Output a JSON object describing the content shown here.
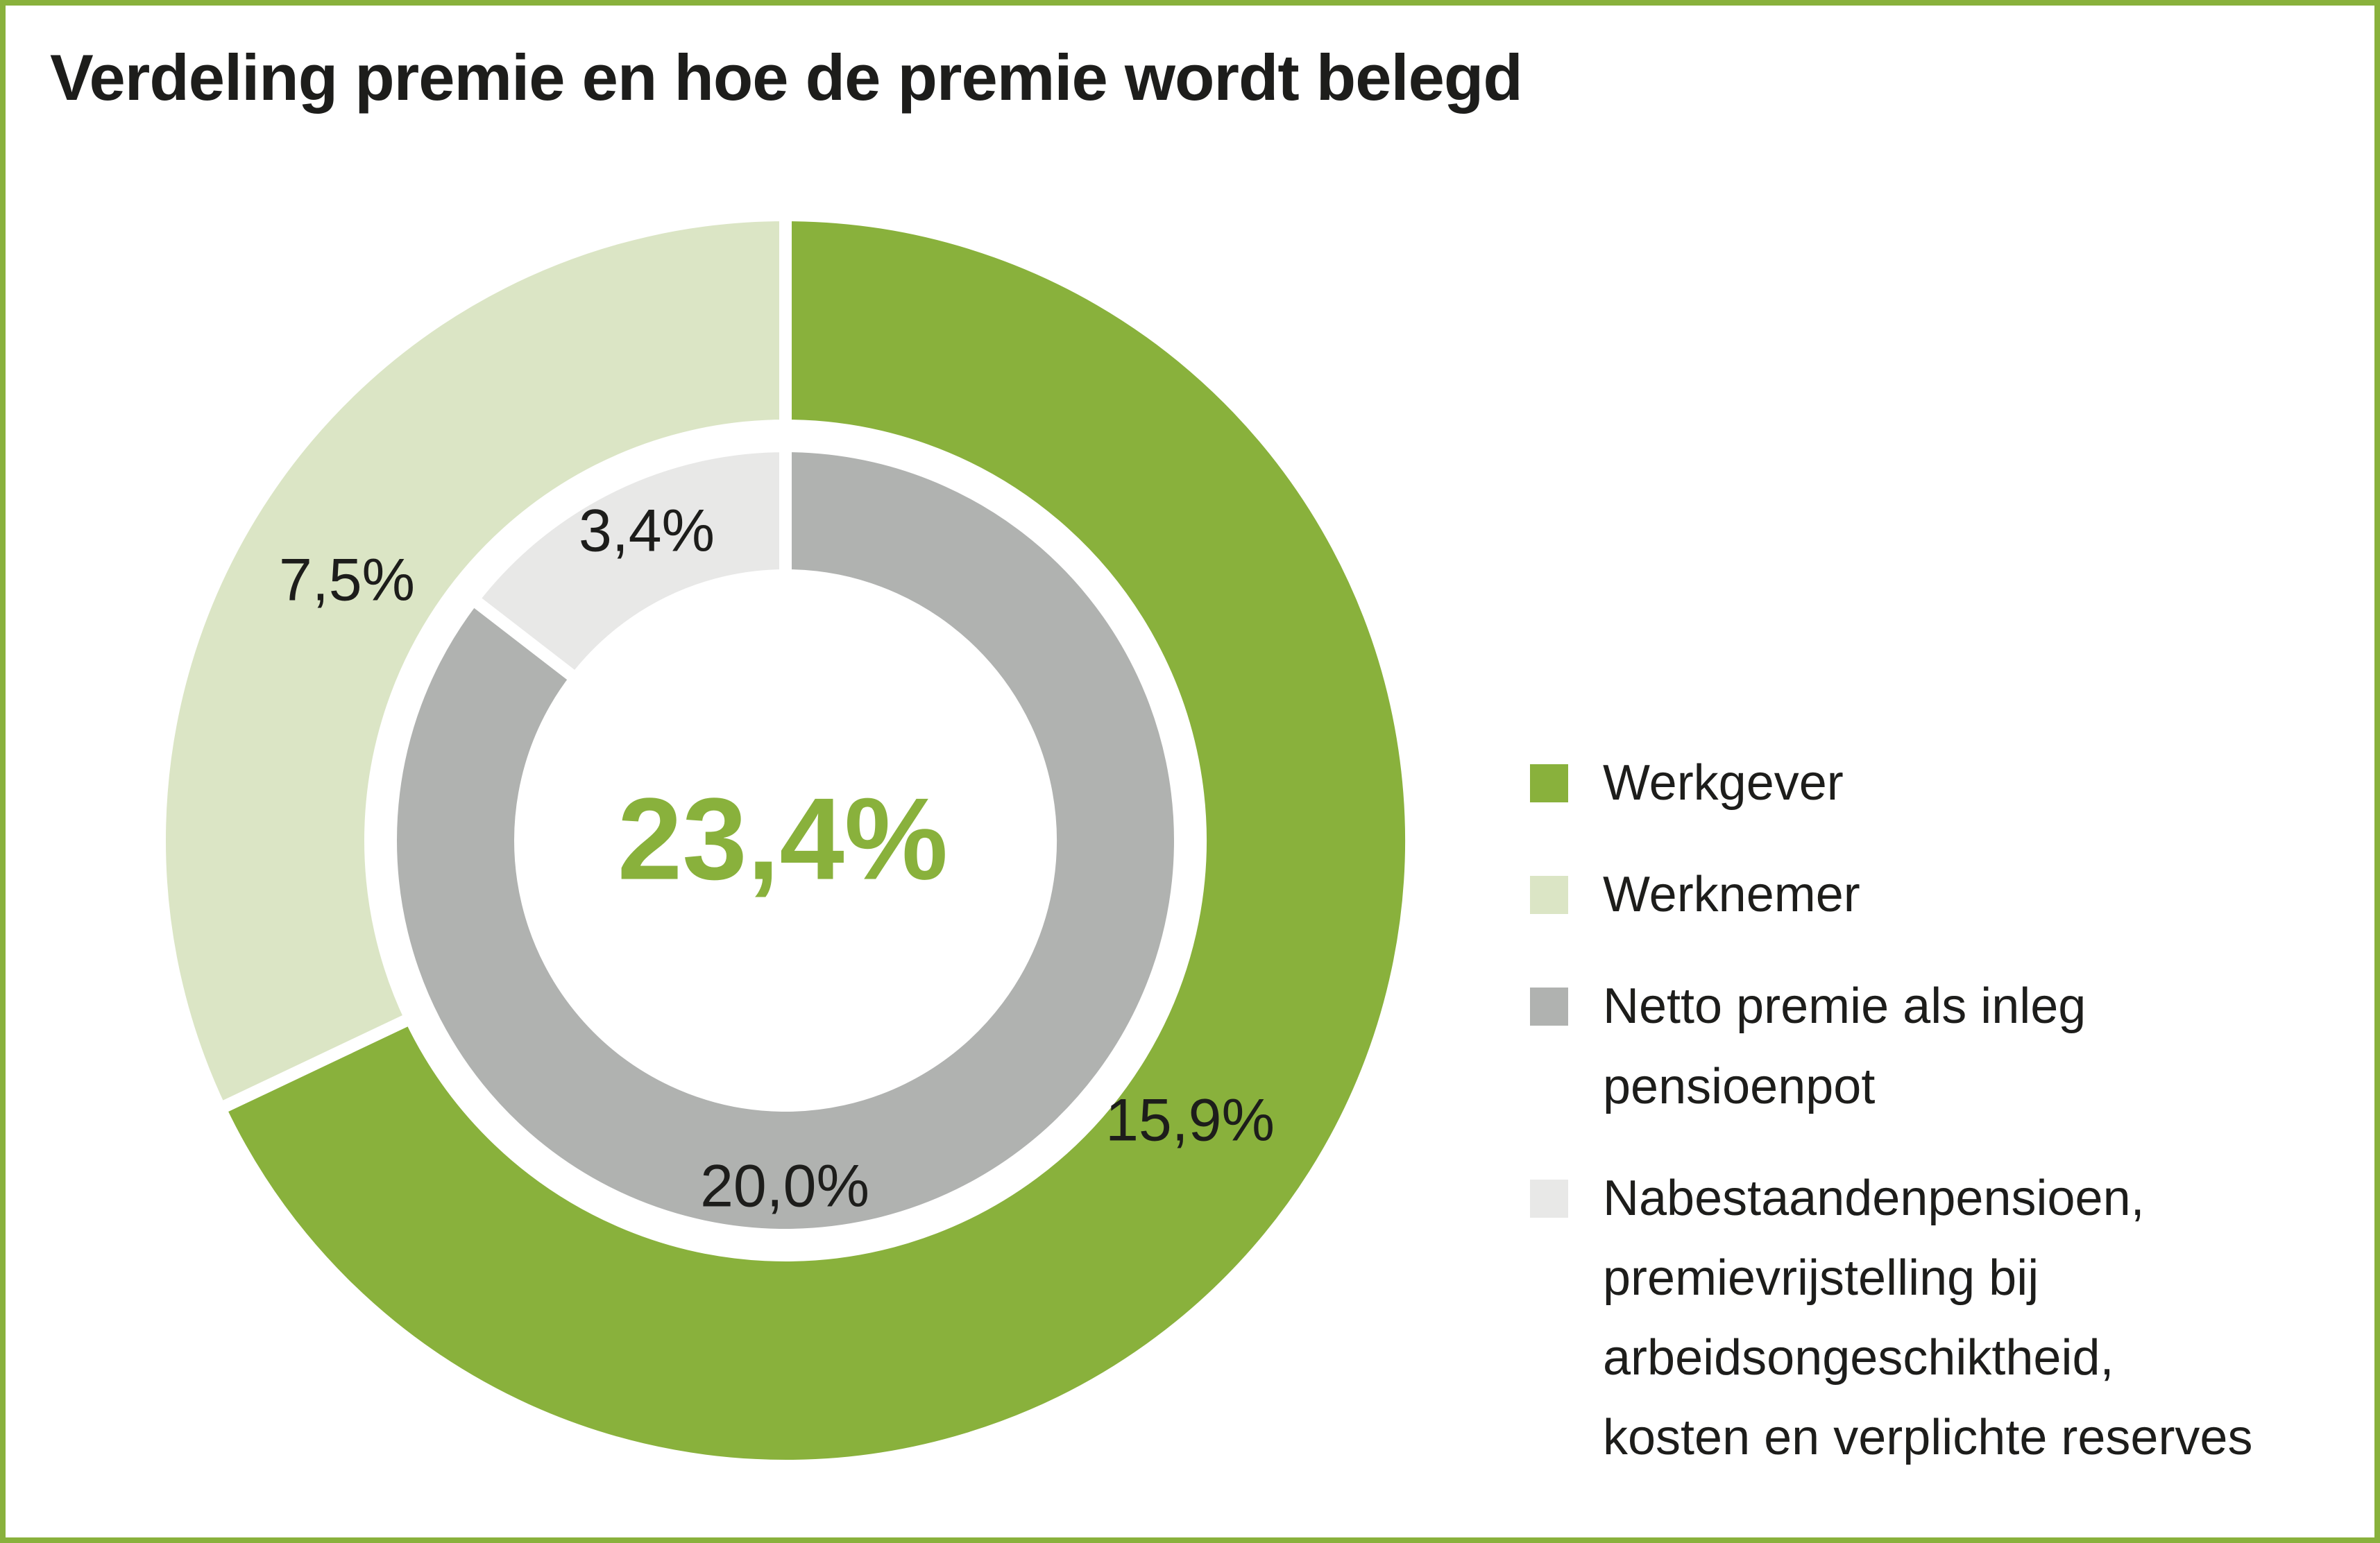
{
  "title": "Verdeling premie en hoe de premie wordt belegd",
  "colors": {
    "accent_green": "#89B13C",
    "light_green": "#DBE5C5",
    "gray": "#B0B2B0",
    "light_gray": "#E8E8E7",
    "text": "#1D1D1B",
    "border": "#89B13C",
    "background": "#FFFFFF"
  },
  "chart_data": {
    "type": "pie",
    "subtype": "nested-donut",
    "title": "Verdeling premie en hoe de premie wordt belegd",
    "units": "%",
    "center": [
      1132,
      1212
    ],
    "start_angle_deg": 0,
    "clockwise": true,
    "center_value": 23.4,
    "center_label": "23,4%",
    "rings": [
      {
        "name": "premieverdeling-buitenring",
        "inner_radius": 598,
        "outer_radius": 902,
        "total": 23.4,
        "segments": [
          {
            "label": "Werkgever",
            "value": 15.9,
            "display": "15,9%",
            "color": "#89B13C"
          },
          {
            "label": "Werknemer",
            "value": 7.5,
            "display": "7,5%",
            "color": "#DBE5C5"
          }
        ]
      },
      {
        "name": "premiebesteding-binnenring",
        "inner_radius": 382,
        "outer_radius": 569,
        "total": 23.4,
        "segments": [
          {
            "label": "Netto premie als inleg pensioenpot",
            "value": 20.0,
            "display": "20,0%",
            "color": "#B0B2B0"
          },
          {
            "label": "Nabestaandenpensioen, premievrijstelling bij arbeidsongeschiktheid, kosten en verplichte reserves",
            "value": 3.4,
            "display": "3,4%",
            "color": "#E8E8E7"
          }
        ]
      }
    ],
    "legend_position": "right"
  },
  "legend": {
    "items": [
      {
        "label": "Werkgever",
        "color": "#89B13C"
      },
      {
        "label": "Werknemer",
        "color": "#DBE5C5"
      },
      {
        "label": "Netto premie als inleg\npensioenpot",
        "color": "#B0B2B0"
      },
      {
        "label": "Nabestaandenpensioen,\npremievrijstelling bij\narbeidsongeschiktheid,\nkosten en verplichte reserves",
        "color": "#E8E8E7"
      }
    ]
  }
}
